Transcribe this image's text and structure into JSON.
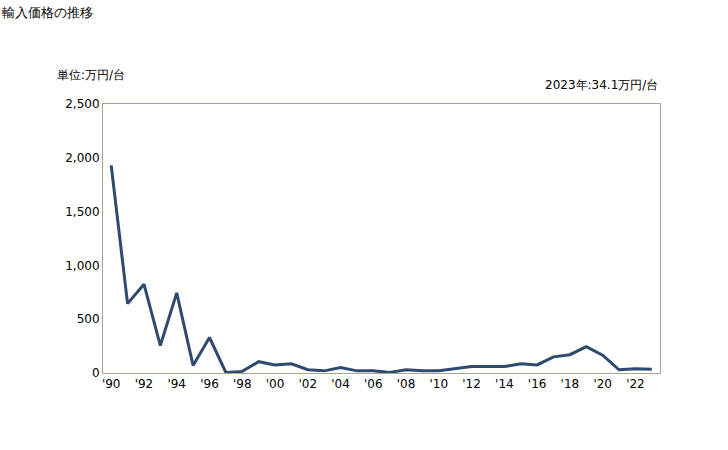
{
  "chart_data": {
    "type": "line",
    "title": "輸入価格の推移",
    "y_label": "単位:万円/台",
    "annotation": "2023年:34.1万円/台",
    "categories": [
      "'90",
      null,
      "'92",
      null,
      "'94",
      null,
      "'96",
      null,
      "'98",
      null,
      "'00",
      null,
      "'02",
      null,
      "'04",
      null,
      "'06",
      null,
      "'08",
      null,
      "'10",
      null,
      "'12",
      null,
      "'14",
      null,
      "'16",
      null,
      "'18",
      null,
      "'20",
      null,
      "'22",
      null
    ],
    "values": [
      1930,
      645,
      825,
      255,
      745,
      70,
      330,
      5,
      15,
      105,
      75,
      85,
      30,
      20,
      50,
      20,
      20,
      5,
      30,
      20,
      20,
      40,
      60,
      60,
      60,
      85,
      75,
      150,
      170,
      245,
      165,
      30,
      40,
      34.1
    ],
    "color": "#2e4a6e",
    "ylim": [
      0,
      2500
    ],
    "yticks": [
      0,
      500,
      {
        "value": 1000,
        "label": "1,000"
      },
      {
        "value": 1500,
        "label": "1,500"
      },
      {
        "value": 2000,
        "label": "2,000"
      },
      {
        "value": 2500,
        "label": "2,500"
      }
    ],
    "grid": false
  }
}
